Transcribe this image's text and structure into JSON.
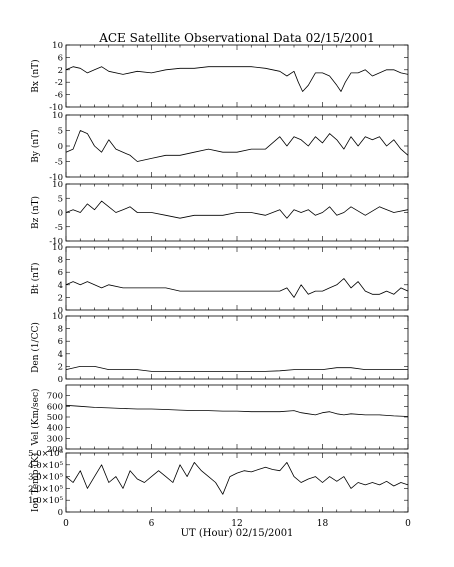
{
  "chart_data": {
    "type": "line",
    "title": "ACE Satellite Observational Data   02/15/2001",
    "xlabel": "UT (Hour)   02/15/2001",
    "x_tick_labels": [
      "0",
      "6",
      "12",
      "18",
      "0"
    ],
    "xlim": [
      0,
      24
    ],
    "panels": [
      {
        "ylabel": "Bx (nT)",
        "ylim": [
          -10,
          10
        ],
        "y_ticks": [
          10,
          6,
          2,
          -2,
          -6,
          -10
        ],
        "y_tick_labels": [
          "10",
          "6",
          "2",
          "-2",
          "-6",
          "-10"
        ],
        "series": [
          {
            "x": [
              0,
              0.5,
              1,
              1.5,
              2,
              2.5,
              3,
              4,
              5,
              6,
              7,
              8,
              9,
              10,
              11,
              12,
              13,
              14,
              15,
              15.5,
              16,
              16.3,
              16.6,
              17,
              17.5,
              18,
              18.5,
              19,
              19.3,
              19.6,
              20,
              20.5,
              21,
              21.5,
              22,
              22.5,
              23,
              23.5,
              24
            ],
            "y": [
              2,
              3,
              2.5,
              1,
              2,
              3,
              1.5,
              0.5,
              1.5,
              1,
              2,
              2.5,
              2.5,
              3,
              3,
              3,
              3,
              2.5,
              1.5,
              0,
              1.5,
              -2,
              -5,
              -3,
              1,
              1,
              0,
              -3,
              -5,
              -2,
              1,
              1,
              2,
              0,
              1,
              2,
              2,
              1,
              0.5
            ]
          }
        ]
      },
      {
        "ylabel": "By (nT)",
        "ylim": [
          -10,
          10
        ],
        "y_ticks": [
          10,
          5,
          0,
          -5,
          -10
        ],
        "y_tick_labels": [
          "10",
          "5",
          "0",
          "-5",
          "-10"
        ],
        "series": [
          {
            "x": [
              0,
              0.5,
              1,
              1.5,
              2,
              2.5,
              3,
              3.5,
              4,
              4.5,
              5,
              6,
              7,
              8,
              9,
              10,
              11,
              12,
              13,
              14,
              15,
              15.5,
              16,
              16.5,
              17,
              17.5,
              18,
              18.5,
              19,
              19.5,
              20,
              20.5,
              21,
              21.5,
              22,
              22.5,
              23,
              23.5,
              24
            ],
            "y": [
              -2,
              -1,
              5,
              4,
              0,
              -2,
              2,
              -1,
              -2,
              -3,
              -5,
              -4,
              -3,
              -3,
              -2,
              -1,
              -2,
              -2,
              -1,
              -1,
              3,
              0,
              3,
              2,
              0,
              3,
              1,
              4,
              2,
              -1,
              3,
              0,
              3,
              2,
              3,
              0,
              2,
              -1,
              -3
            ]
          }
        ]
      },
      {
        "ylabel": "Bz (nT)",
        "ylim": [
          -10,
          10
        ],
        "y_ticks": [
          10,
          5,
          0,
          -5,
          -10
        ],
        "y_tick_labels": [
          "10",
          "5",
          "0",
          "-5",
          "-10"
        ],
        "series": [
          {
            "x": [
              0,
              0.5,
              1,
              1.5,
              2,
              2.5,
              3,
              3.5,
              4,
              4.5,
              5,
              6,
              7,
              8,
              9,
              10,
              11,
              12,
              13,
              14,
              15,
              15.5,
              16,
              16.5,
              17,
              17.5,
              18,
              18.5,
              19,
              19.5,
              20,
              21,
              22,
              23,
              24
            ],
            "y": [
              0,
              1,
              0,
              3,
              1,
              4,
              2,
              0,
              1,
              2,
              0,
              0,
              -1,
              -2,
              -1,
              -1,
              -1,
              0,
              0,
              -1,
              1,
              -2,
              1,
              0,
              1,
              -1,
              0,
              2,
              -1,
              0,
              2,
              -1,
              2,
              0,
              1
            ]
          }
        ]
      },
      {
        "ylabel": "Bt (nT)",
        "ylim": [
          0,
          10
        ],
        "y_ticks": [
          10,
          8,
          6,
          4,
          2,
          0
        ],
        "y_tick_labels": [
          "10",
          "8",
          "6",
          "4",
          "2",
          "0"
        ],
        "series": [
          {
            "x": [
              0,
              0.5,
              1,
              1.5,
              2,
              2.5,
              3,
              4,
              5,
              6,
              7,
              8,
              9,
              10,
              11,
              12,
              13,
              14,
              15,
              15.5,
              16,
              16.5,
              17,
              17.5,
              18,
              18.5,
              19,
              19.5,
              20,
              20.5,
              21,
              21.5,
              22,
              22.5,
              23,
              23.5,
              24
            ],
            "y": [
              4,
              4.5,
              4,
              4.5,
              4,
              3.5,
              4,
              3.5,
              3.5,
              3.5,
              3.5,
              3,
              3,
              3,
              3,
              3,
              3,
              3,
              3,
              3.5,
              2,
              4,
              2.5,
              3,
              3,
              3.5,
              4,
              5,
              3.5,
              4.5,
              3,
              2.5,
              2.5,
              3,
              2.5,
              3.5,
              3
            ]
          }
        ]
      },
      {
        "ylabel": "Den (1/CC)",
        "ylim": [
          0,
          10
        ],
        "y_ticks": [
          10,
          8,
          6,
          4,
          2,
          0
        ],
        "y_tick_labels": [
          "10",
          "8",
          "6",
          "4",
          "2",
          "0"
        ],
        "series": [
          {
            "x": [
              0,
              1,
              2,
              3,
              4,
              5,
              6,
              7,
              8,
              9,
              10,
              11,
              12,
              13,
              14,
              15,
              16,
              17,
              18,
              19,
              20,
              21,
              22,
              23,
              24
            ],
            "y": [
              1.5,
              2,
              2,
              1.5,
              1.5,
              1.5,
              1.2,
              1.2,
              1.2,
              1.2,
              1.2,
              1.2,
              1.2,
              1.2,
              1.2,
              1.3,
              1.5,
              1.5,
              1.5,
              1.8,
              1.8,
              1.5,
              1.5,
              1.5,
              1.5
            ]
          }
        ]
      },
      {
        "ylabel": "Vel (Km/sec)",
        "ylim": [
          200,
          800
        ],
        "y_ticks": [
          700,
          600,
          500,
          400,
          300,
          200
        ],
        "y_tick_labels": [
          "700",
          "600",
          "500",
          "400",
          "300",
          "200"
        ],
        "series": [
          {
            "x": [
              0,
              1,
              2,
              3,
              4,
              5,
              6,
              7,
              8,
              9,
              10,
              11,
              12,
              13,
              14,
              15,
              16,
              16.5,
              17,
              17.5,
              18,
              18.5,
              19,
              19.5,
              20,
              21,
              22,
              23,
              24
            ],
            "y": [
              610,
              600,
              590,
              585,
              580,
              575,
              575,
              570,
              565,
              560,
              560,
              555,
              555,
              550,
              550,
              550,
              560,
              540,
              530,
              520,
              540,
              550,
              530,
              520,
              530,
              520,
              520,
              510,
              505
            ]
          }
        ]
      },
      {
        "ylabel": "Ion Temp (K)",
        "ylim": [
          0,
          500000
        ],
        "y_ticks": [
          500000,
          400000,
          300000,
          200000,
          100000,
          0
        ],
        "y_tick_labels": [
          "5.0×10⁵",
          "4.0×10⁵",
          "3.0×10⁵",
          "2.0×10⁵",
          "1.0×10⁵",
          "0"
        ],
        "series": [
          {
            "x": [
              0,
              0.5,
              1,
              1.5,
              2,
              2.5,
              3,
              3.5,
              4,
              4.5,
              5,
              5.5,
              6,
              6.5,
              7,
              7.5,
              8,
              8.5,
              9,
              9.5,
              10,
              10.5,
              11,
              11.5,
              12,
              12.5,
              13,
              13.5,
              14,
              14.5,
              15,
              15.5,
              16,
              16.5,
              17,
              17.5,
              18,
              18.5,
              19,
              19.5,
              20,
              20.5,
              21,
              21.5,
              22,
              22.5,
              23,
              23.5,
              24
            ],
            "y": [
              300000,
              250000,
              350000,
              200000,
              300000,
              400000,
              250000,
              300000,
              200000,
              350000,
              280000,
              250000,
              300000,
              350000,
              300000,
              250000,
              400000,
              300000,
              420000,
              350000,
              300000,
              250000,
              150000,
              300000,
              330000,
              350000,
              340000,
              360000,
              380000,
              360000,
              350000,
              420000,
              300000,
              250000,
              280000,
              300000,
              250000,
              300000,
              260000,
              300000,
              200000,
              250000,
              230000,
              250000,
              230000,
              260000,
              220000,
              250000,
              230000
            ]
          }
        ]
      }
    ]
  }
}
